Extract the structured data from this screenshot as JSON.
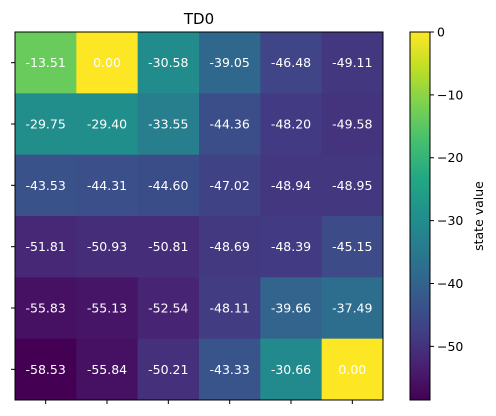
{
  "chart_data": {
    "type": "heatmap",
    "title": "TD0",
    "rows": 6,
    "cols": 6,
    "values": [
      [
        -13.51,
        0.0,
        -30.58,
        -39.05,
        -46.48,
        -49.11
      ],
      [
        -29.75,
        -29.4,
        -33.55,
        -44.36,
        -48.2,
        -49.58
      ],
      [
        -43.53,
        -44.31,
        -44.6,
        -47.02,
        -48.94,
        -48.95
      ],
      [
        -51.81,
        -50.93,
        -50.81,
        -48.69,
        -48.39,
        -45.15
      ],
      [
        -55.83,
        -55.13,
        -52.54,
        -48.11,
        -39.66,
        -37.49
      ],
      [
        -58.53,
        -55.84,
        -50.21,
        -43.33,
        -30.66,
        0.0
      ]
    ],
    "value_labels": [
      [
        "-13.51",
        "0.00",
        "-30.58",
        "-39.05",
        "-46.48",
        "-49.11"
      ],
      [
        "-29.75",
        "-29.40",
        "-33.55",
        "-44.36",
        "-48.20",
        "-49.58"
      ],
      [
        "-43.53",
        "-44.31",
        "-44.60",
        "-47.02",
        "-48.94",
        "-48.95"
      ],
      [
        "-51.81",
        "-50.93",
        "-50.81",
        "-48.69",
        "-48.39",
        "-45.15"
      ],
      [
        "-55.83",
        "-55.13",
        "-52.54",
        "-48.11",
        "-39.66",
        "-37.49"
      ],
      [
        "-58.53",
        "-55.84",
        "-50.21",
        "-43.33",
        "-30.66",
        "0.00"
      ]
    ],
    "colormap": "viridis",
    "vmin": -58.53,
    "vmax": 0,
    "colorbar": {
      "label": "state value",
      "ticks": [
        0,
        -10,
        -20,
        -30,
        -40,
        -50
      ],
      "tick_labels": [
        "0",
        "−10",
        "−20",
        "−30",
        "−40",
        "−50"
      ]
    },
    "x_tick_labels": [
      "",
      "",
      "",
      "",
      "",
      ""
    ],
    "y_tick_labels": [
      "",
      "",
      "",
      "",
      "",
      ""
    ],
    "grid": false
  }
}
